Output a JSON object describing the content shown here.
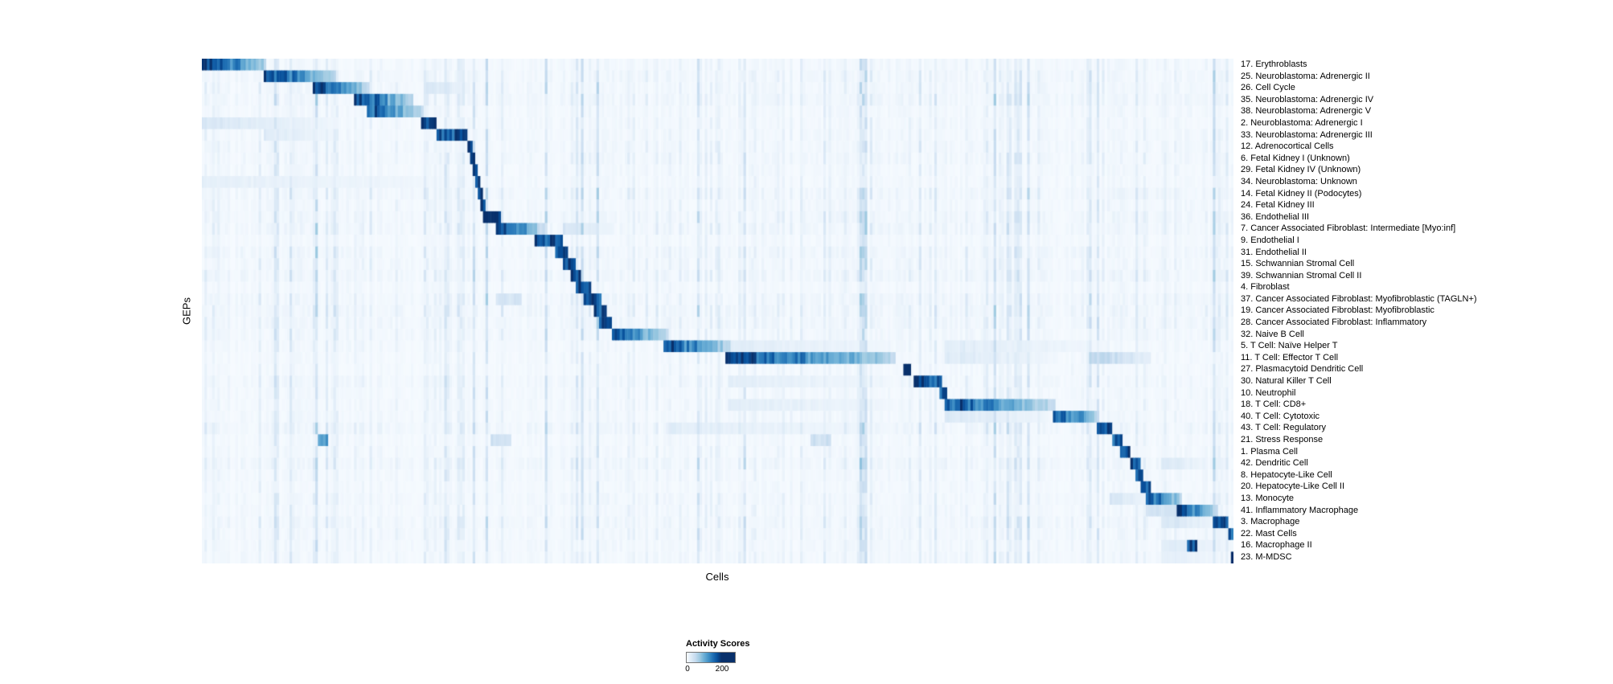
{
  "chart_data": {
    "type": "heatmap",
    "title": "",
    "xlabel": "Cells",
    "ylabel": "GEPs",
    "value_range": [
      0,
      200
    ],
    "legend": {
      "title": "Activity Scores",
      "ticks": [
        "0",
        "200"
      ]
    },
    "colormap_name": "Blues",
    "colormap": [
      "#f7fbff",
      "#deebf7",
      "#c6dbef",
      "#9ecae1",
      "#6baed6",
      "#4292c6",
      "#2171b5",
      "#08519c",
      "#08306b"
    ],
    "n_rows": 43,
    "rows": [
      {
        "label": "17. Erythroblasts",
        "segments": [
          [
            0.0,
            0.062,
            200
          ]
        ]
      },
      {
        "label": "25. Neuroblastoma: Adrenergic II",
        "segments": [
          [
            0.06,
            0.13,
            190
          ]
        ]
      },
      {
        "label": "26. Cell Cycle",
        "segments": [
          [
            0.108,
            0.162,
            190
          ],
          [
            0.215,
            0.26,
            35
          ]
        ]
      },
      {
        "label": "35. Neuroblastoma: Adrenergic IV",
        "segments": [
          [
            0.148,
            0.205,
            185
          ]
        ]
      },
      {
        "label": "38. Neuroblastoma: Adrenergic V",
        "segments": [
          [
            0.16,
            0.215,
            170
          ]
        ]
      },
      {
        "label": "2. Neuroblastoma: Adrenergic I",
        "segments": [
          [
            0.213,
            0.228,
            200
          ],
          [
            0.0,
            0.13,
            30
          ]
        ]
      },
      {
        "label": "33. Neuroblastoma: Adrenergic III",
        "segments": [
          [
            0.228,
            0.258,
            185
          ],
          [
            0.06,
            0.13,
            25
          ]
        ]
      },
      {
        "label": "12. Adrenocortical Cells",
        "segments": [
          [
            0.258,
            0.263,
            200
          ]
        ]
      },
      {
        "label": "6. Fetal Kidney I (Unknown)",
        "segments": [
          [
            0.261,
            0.266,
            190
          ]
        ]
      },
      {
        "label": "29. Fetal Kidney IV (Unknown)",
        "segments": [
          [
            0.263,
            0.268,
            180
          ]
        ]
      },
      {
        "label": "34. Neuroblastoma: Unknown",
        "segments": [
          [
            0.265,
            0.27,
            170
          ],
          [
            0.0,
            0.26,
            18
          ]
        ]
      },
      {
        "label": "14. Fetal Kidney II (Podocytes)",
        "segments": [
          [
            0.267,
            0.272,
            185
          ]
        ]
      },
      {
        "label": "24. Fetal Kidney III",
        "segments": [
          [
            0.269,
            0.276,
            180
          ]
        ]
      },
      {
        "label": "36. Endothelial III",
        "segments": [
          [
            0.272,
            0.289,
            195
          ]
        ]
      },
      {
        "label": "7. Cancer Associated Fibroblast: Intermediate [Myo:inf]",
        "segments": [
          [
            0.286,
            0.332,
            180
          ],
          [
            0.35,
            0.4,
            30
          ]
        ]
      },
      {
        "label": "9. Endothelial I",
        "segments": [
          [
            0.322,
            0.349,
            195
          ]
        ]
      },
      {
        "label": "31. Endothelial II",
        "segments": [
          [
            0.342,
            0.354,
            190
          ]
        ]
      },
      {
        "label": "15. Schwannian Stromal Cell",
        "segments": [
          [
            0.35,
            0.363,
            185
          ]
        ]
      },
      {
        "label": "39. Schwannian Stromal Cell II",
        "segments": [
          [
            0.357,
            0.368,
            175
          ]
        ]
      },
      {
        "label": "4. Fibroblast",
        "segments": [
          [
            0.362,
            0.378,
            185
          ]
        ]
      },
      {
        "label": "37. Cancer Associated Fibroblast: Myofibroblastic (TAGLN+)",
        "segments": [
          [
            0.371,
            0.388,
            180
          ],
          [
            0.286,
            0.31,
            35
          ]
        ]
      },
      {
        "label": "19. Cancer Associated Fibroblast: Myofibroblastic",
        "segments": [
          [
            0.381,
            0.393,
            180
          ]
        ]
      },
      {
        "label": "28. Cancer Associated Fibroblast: Inflammatory",
        "segments": [
          [
            0.386,
            0.398,
            175
          ]
        ]
      },
      {
        "label": "32. Naive B Cell",
        "segments": [
          [
            0.397,
            0.453,
            165
          ]
        ]
      },
      {
        "label": "5. T Cell: Naïve Helper T",
        "segments": [
          [
            0.447,
            0.512,
            185
          ],
          [
            0.51,
            0.67,
            22
          ],
          [
            0.72,
            0.88,
            22
          ]
        ]
      },
      {
        "label": "11. T Cell: Effector T Cell",
        "segments": [
          [
            0.507,
            0.672,
            190
          ],
          [
            0.86,
            0.92,
            60
          ],
          [
            0.72,
            0.83,
            25
          ]
        ]
      },
      {
        "label": "27. Plasmacytoid Dendritic Cell",
        "segments": [
          [
            0.681,
            0.688,
            190
          ]
        ]
      },
      {
        "label": "30. Natural Killer T Cell",
        "segments": [
          [
            0.69,
            0.717,
            180
          ],
          [
            0.51,
            0.67,
            20
          ]
        ]
      },
      {
        "label": "10. Neutrophil",
        "segments": [
          [
            0.716,
            0.722,
            185
          ]
        ]
      },
      {
        "label": "18. T Cell: CD8+",
        "segments": [
          [
            0.721,
            0.827,
            175
          ],
          [
            0.51,
            0.67,
            22
          ]
        ]
      },
      {
        "label": "40. T Cell: Cytotoxic",
        "segments": [
          [
            0.825,
            0.871,
            180
          ],
          [
            0.72,
            0.82,
            28
          ]
        ]
      },
      {
        "label": "43. T Cell: Regulatory",
        "segments": [
          [
            0.868,
            0.883,
            175
          ],
          [
            0.45,
            0.67,
            20
          ]
        ]
      },
      {
        "label": "21. Stress Response",
        "segments": [
          [
            0.882,
            0.893,
            170
          ],
          [
            0.112,
            0.122,
            120
          ],
          [
            0.28,
            0.3,
            40
          ],
          [
            0.59,
            0.61,
            40
          ]
        ]
      },
      {
        "label": "1. Plasma Cell",
        "segments": [
          [
            0.89,
            0.901,
            180
          ]
        ]
      },
      {
        "label": "42. Dendritic Cell",
        "segments": [
          [
            0.9,
            0.911,
            175
          ],
          [
            0.93,
            0.97,
            30
          ]
        ]
      },
      {
        "label": "8. Hepatocyte-Like Cell",
        "segments": [
          [
            0.906,
            0.913,
            180
          ]
        ]
      },
      {
        "label": "20. Hepatocyte-Like Cell II",
        "segments": [
          [
            0.91,
            0.919,
            175
          ]
        ]
      },
      {
        "label": "13. Monocyte",
        "segments": [
          [
            0.915,
            0.951,
            180
          ],
          [
            0.88,
            0.915,
            35
          ]
        ]
      },
      {
        "label": "41. Inflammatory Macrophage",
        "segments": [
          [
            0.944,
            0.986,
            185
          ],
          [
            0.915,
            0.945,
            40
          ]
        ]
      },
      {
        "label": "3. Macrophage",
        "segments": [
          [
            0.979,
            0.996,
            190
          ],
          [
            0.93,
            0.98,
            35
          ]
        ]
      },
      {
        "label": "22. Mast Cells",
        "segments": [
          [
            0.995,
            1.0,
            170
          ]
        ]
      },
      {
        "label": "16. Macrophage II",
        "segments": [
          [
            0.955,
            0.966,
            175
          ],
          [
            0.93,
            1.0,
            25
          ]
        ]
      },
      {
        "label": "23. M-MDSC",
        "segments": [
          [
            0.997,
            1.0,
            200
          ],
          [
            0.93,
            0.99,
            20
          ]
        ]
      }
    ]
  }
}
